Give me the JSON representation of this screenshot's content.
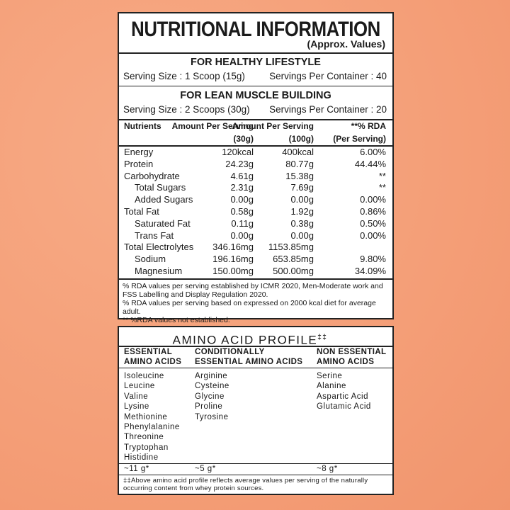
{
  "nutrition": {
    "title": "NUTRITIONAL INFORMATION",
    "subtitle": "(Approx. Values)",
    "sections": [
      {
        "heading": "FOR HEALTHY LIFESTYLE",
        "serving_size": "Serving Size : 1 Scoop (15g)",
        "servings_per_container": "Servings Per Container : 40"
      },
      {
        "heading": "FOR LEAN MUSCLE BUILDING",
        "serving_size": "Serving Size : 2 Scoops (30g)",
        "servings_per_container": "Servings Per Container : 20"
      }
    ],
    "table": {
      "header": [
        [
          "Nutrients"
        ],
        [
          "Amount Per Serving",
          "(30g)"
        ],
        [
          "Amount Per Serving",
          "(100g)"
        ],
        [
          "**% RDA",
          "(Per Serving)"
        ]
      ],
      "rows": [
        [
          "Energy",
          "120kcal",
          "400kcal",
          "6.00%"
        ],
        [
          "Protein",
          "24.23g",
          "80.77g",
          "44.44%"
        ],
        [
          "Carbohydrate",
          "4.61g",
          "15.38g",
          "**"
        ],
        [
          "Total Sugars",
          "2.31g",
          "7.69g",
          "**"
        ],
        [
          "Added Sugars",
          "0.00g",
          "0.00g",
          "0.00%"
        ],
        [
          "Total Fat",
          "0.58g",
          "1.92g",
          "0.86%"
        ],
        [
          "Saturated Fat",
          "0.11g",
          "0.38g",
          "0.50%"
        ],
        [
          "Trans Fat",
          "0.00g",
          "0.00g",
          "0.00%"
        ],
        [
          "Total Electrolytes",
          "346.16mg",
          "1153.85mg"
        ],
        [
          "Sodium",
          "196.16mg",
          "653.85mg",
          "9.80%"
        ],
        [
          "Magnesium",
          "150.00mg",
          "500.00mg",
          "34.09%"
        ]
      ]
    },
    "footnotes": [
      "% RDA values per serving established by ICMR 2020, Men-Moderate work and FSS Labelling and Display Regulation 2020.",
      "% RDA values per serving based on expressed on 2000 kcal diet for average adult.",
      "** %RDA values not established."
    ]
  },
  "amino": {
    "title": "AMINO ACID PROFILE",
    "title_mark": "‡‡",
    "columns": [
      {
        "heading": [
          "ESSENTIAL",
          "AMINO ACIDS"
        ],
        "items": [
          "Isoleucine",
          "Leucine",
          "Valine",
          "Lysine",
          "Methionine",
          "Phenylalanine",
          "Threonine",
          "Tryptophan",
          "Histidine"
        ],
        "total": "~11 g*"
      },
      {
        "heading": [
          "CONDITIONALLY",
          "ESSENTIAL AMINO ACIDS"
        ],
        "items": [
          "Arginine",
          "Cysteine",
          "Glycine",
          "Proline",
          "Tyrosine"
        ],
        "total": "~5 g*"
      },
      {
        "heading": [
          "NON ESSENTIAL",
          "AMINO ACIDS"
        ],
        "items": [
          "Serine",
          "Alanine",
          "Aspartic Acid",
          "Glutamic Acid"
        ],
        "total": "~8 g*"
      }
    ],
    "footnote": "‡‡Above amino acid profile reflects average values per serving of the naturally occurring content from whey protein sources."
  }
}
